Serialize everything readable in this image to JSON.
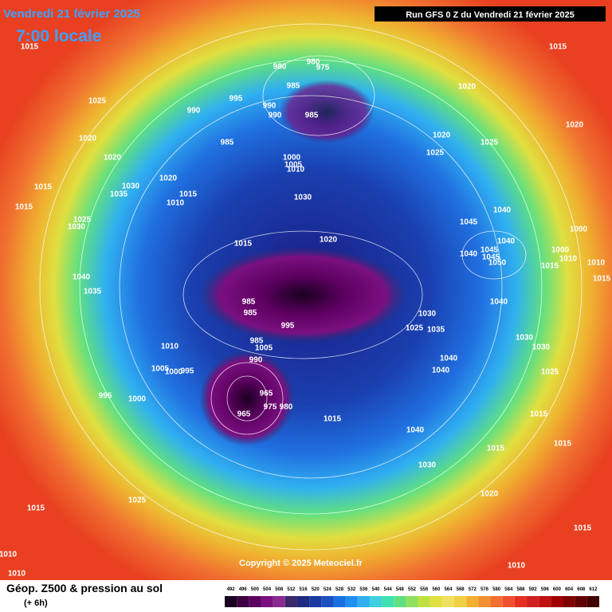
{
  "header": {
    "date": "Vendredi 21 février 2025",
    "time": "7:00 locale",
    "run": "Run GFS 0 Z du Vendredi 21 février 2025"
  },
  "copyright": "Copyright © 2025 Meteociel.fr",
  "footer": {
    "title": "Géop. Z500 & pression au sol",
    "lead": "(+ 6h)"
  },
  "scale": {
    "ticks": [
      492,
      496,
      500,
      504,
      508,
      512,
      516,
      520,
      524,
      528,
      532,
      536,
      540,
      544,
      548,
      552,
      556,
      560,
      564,
      568,
      572,
      576,
      580,
      584,
      588,
      592,
      596,
      600,
      604,
      608,
      612
    ],
    "colors": [
      "#1a0020",
      "#3d0040",
      "#5c0060",
      "#7a1080",
      "#8a2a90",
      "#3a2a6a",
      "#202a80",
      "#1a3aa0",
      "#1a50c0",
      "#1a70e0",
      "#2090f0",
      "#30b0f0",
      "#40d0e0",
      "#40e0b0",
      "#60e080",
      "#90e060",
      "#c0e040",
      "#e0e040",
      "#f0e060",
      "#f0d040",
      "#f0b030",
      "#f09030",
      "#f07030",
      "#f05030",
      "#e83020",
      "#d02020",
      "#c01010",
      "#a00000",
      "#800000",
      "#600000",
      "#400000"
    ]
  },
  "isobar_labels": [
    1015,
    980,
    980,
    975,
    985,
    1025,
    990,
    995,
    990,
    990,
    985,
    1020,
    1020,
    985,
    1020,
    1020,
    1025,
    1025,
    1015,
    1020,
    1000,
    1005,
    1010,
    1020,
    1030,
    1015,
    1035,
    1015,
    1010,
    1030,
    1015,
    1025,
    1030,
    1045,
    1040,
    1040,
    1000,
    1000,
    1015,
    1020,
    1040,
    1045,
    1045,
    1050,
    1010,
    1010,
    1015,
    1015,
    1040,
    1035,
    985,
    985,
    1030,
    1040,
    995,
    1025,
    1035,
    1030,
    1030,
    1010,
    985,
    1005,
    990,
    1040,
    1040,
    1025,
    1005,
    1000,
    995,
    995,
    1000,
    965,
    975,
    980,
    965,
    1015,
    1015,
    1040,
    1015,
    1015,
    1030,
    1020,
    1015,
    1025,
    1015,
    1010,
    1010,
    1010
  ]
}
